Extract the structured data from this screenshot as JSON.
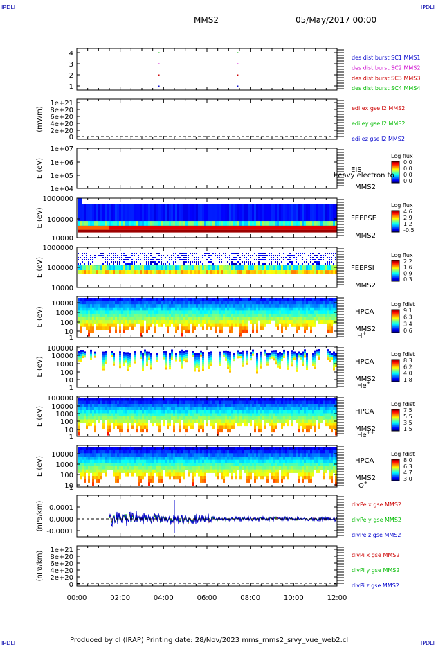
{
  "corner_labels": {
    "tl": "IPDLI",
    "tr": "IPDLI",
    "bl": "IPDLI",
    "br": "IPDLI"
  },
  "header": {
    "spacecraft": "MMS2",
    "datetime": "05/May/2017 00:00"
  },
  "footer": {
    "text": "Produced by cl (IRAP)   Printing date: 28/Nov/2023   mms_mms2_srvy_vue_web2.cl"
  },
  "chart_data": {
    "type": "heatmap",
    "x_ticks": [
      "00:00",
      "02:00",
      "04:00",
      "06:00",
      "08:00",
      "10:00",
      "12:00"
    ],
    "x_range": [
      "00:00",
      "12:00"
    ],
    "panels": [
      {
        "id": "burst",
        "type": "scatter",
        "yticks": [
          "4",
          "3",
          "2",
          "1"
        ],
        "legend": [
          {
            "label": "des dist burst SC1 MMS1",
            "color": "#0000cc"
          },
          {
            "label": "des dist burst SC2 MMS2",
            "color": "#cc00cc"
          },
          {
            "label": "des dist burst SC3 MMS3",
            "color": "#cc0000"
          },
          {
            "label": "des dist burst SC4 MMS4",
            "color": "#00bb00"
          }
        ],
        "points": [
          {
            "x": "03:47",
            "y": 4,
            "color": "#00bb00"
          },
          {
            "x": "07:25",
            "y": 4,
            "color": "#00bb00"
          },
          {
            "x": "03:47",
            "y": 3,
            "color": "#cc00cc"
          },
          {
            "x": "07:25",
            "y": 3,
            "color": "#cc00cc"
          },
          {
            "x": "03:47",
            "y": 2,
            "color": "#cc0000"
          },
          {
            "x": "07:25",
            "y": 2,
            "color": "#cc0000"
          },
          {
            "x": "03:47",
            "y": 1,
            "color": "#0000cc"
          },
          {
            "x": "07:25",
            "y": 1,
            "color": "#0000cc"
          }
        ]
      },
      {
        "id": "edi",
        "type": "line",
        "ylabel": "(mV/m)",
        "yticks": [
          "1e+21",
          "8e+20",
          "6e+20",
          "4e+20",
          "2e+20",
          "0"
        ],
        "legend": [
          {
            "label": "edi ex gse l2 MMS2",
            "color": "#cc0000"
          },
          {
            "label": "edi ey gse l2 MMS2",
            "color": "#00bb00"
          },
          {
            "label": "edi ez gse l2 MMS2",
            "color": "#0000cc"
          }
        ]
      },
      {
        "id": "eis",
        "type": "heatmap",
        "ylabel": "E (eV)",
        "yticks": [
          "1e+07",
          "1e+06",
          "1e+05",
          "1e+04"
        ],
        "side": [
          "EIS",
          "MMS2"
        ],
        "overlay_text": "heavy electron to",
        "cbar_title": "Log flux",
        "cbar_ticks": [
          "0.0",
          "0.0",
          "0.0",
          "0.0"
        ]
      },
      {
        "id": "feepse",
        "type": "heatmap",
        "ylabel": "E (eV)",
        "yticks": [
          "1000000",
          "100000",
          "10000"
        ],
        "side": [
          "FEEPSE",
          "MMS2"
        ],
        "cbar_title": "Log flux",
        "cbar_ticks": [
          "4.6",
          "2.9",
          "1.2",
          "-0.5"
        ]
      },
      {
        "id": "feepsi",
        "type": "heatmap",
        "ylabel": "E (eV)",
        "yticks": [
          "1000000",
          "100000",
          "10000"
        ],
        "side": [
          "FEEPSI",
          "MMS2"
        ],
        "cbar_title": "Log flux",
        "cbar_ticks": [
          "2.2",
          "1.6",
          "0.9",
          "0.3"
        ]
      },
      {
        "id": "hpca_h",
        "type": "heatmap",
        "ylabel": "E (eV)",
        "yticks": [
          "10000",
          "1000",
          "100",
          "10",
          "1"
        ],
        "side": [
          "HPCA",
          "MMS2"
        ],
        "species": "H",
        "species_sup": "+",
        "cbar_title": "Log fdist",
        "cbar_ticks": [
          "9.1",
          "6.3",
          "3.4",
          "0.6"
        ]
      },
      {
        "id": "hpca_he",
        "type": "heatmap",
        "ylabel": "E (eV)",
        "yticks": [
          "100000",
          "10000",
          "1000",
          "100",
          "10",
          "1"
        ],
        "side": [
          "HPCA",
          "MMS2"
        ],
        "species": "He",
        "species_sup": "+",
        "cbar_title": "Log fdist",
        "cbar_ticks": [
          "8.3",
          "6.2",
          "4.0",
          "1.8"
        ]
      },
      {
        "id": "hpca_hepp",
        "type": "heatmap",
        "ylabel": "E (eV)",
        "yticks": [
          "100000",
          "10000",
          "1000",
          "100",
          "10",
          "1"
        ],
        "side": [
          "HPCA",
          "MMS2"
        ],
        "species": "He",
        "species_sup": "++",
        "cbar_title": "Log fdist",
        "cbar_ticks": [
          "7.5",
          "5.5",
          "3.5",
          "1.5"
        ]
      },
      {
        "id": "hpca_o",
        "type": "heatmap",
        "ylabel": "E (eV)",
        "yticks": [
          "10000",
          "1000",
          "100",
          "10",
          "1"
        ],
        "side": [
          "HPCA",
          "MMS2"
        ],
        "species": "O",
        "species_sup": "+",
        "cbar_title": "Log fdist",
        "cbar_ticks": [
          "8.0",
          "6.3",
          "4.7",
          "3.0"
        ]
      },
      {
        "id": "divpe",
        "type": "line",
        "ylabel": "(nPa/km)",
        "yticks": [
          "0.0001",
          "0.0000",
          "-0.0001"
        ],
        "legend": [
          {
            "label": "divPe x gse MMS2",
            "color": "#cc0000"
          },
          {
            "label": "divPe y gse MMS2",
            "color": "#00bb00"
          },
          {
            "label": "divPe z gse MMS2",
            "color": "#0000cc"
          }
        ]
      },
      {
        "id": "divpi",
        "type": "line",
        "ylabel": "(nPa/km)",
        "yticks": [
          "1e+21",
          "8e+20",
          "6e+20",
          "4e+20",
          "2e+20",
          "0"
        ],
        "legend": [
          {
            "label": "divPi x gse MMS2",
            "color": "#cc0000"
          },
          {
            "label": "divPi y gse MMS2",
            "color": "#00bb00"
          },
          {
            "label": "divPi z gse MMS2",
            "color": "#0000cc"
          }
        ]
      }
    ]
  }
}
